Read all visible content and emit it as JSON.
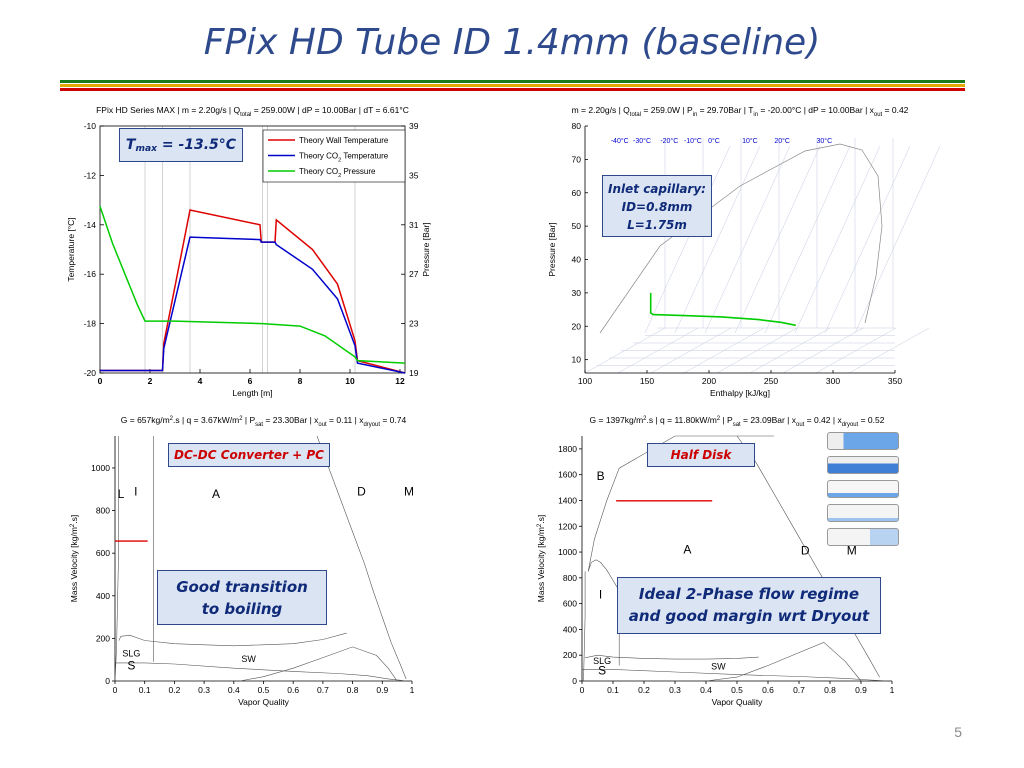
{
  "slide": {
    "title": "FPix HD Tube ID 1.4mm (baseline)",
    "page_number": "5",
    "rule_colors": [
      "#1a7a1a",
      "#e5a800",
      "#cc0000"
    ]
  },
  "chart_data": [
    {
      "id": "temperature_profile",
      "type": "line",
      "title": "FPix HD Series MAX | m = 2.20g/s | Q_total = 259.00W | dP = 10.00Bar | dT = 6.61°C",
      "title_parts": {
        "a": "FPix HD Series MAX | m = 2.20g/s | Q",
        "sub": "total",
        "b": " = 259.00W | dP = 10.00Bar | dT = 6.61°C"
      },
      "xlabel": "Length [m]",
      "ylabel": "Temperature [°C]",
      "y2label": "Pressure [Bar]",
      "xlim": [
        0,
        12.2
      ],
      "ylim": [
        -20,
        -10
      ],
      "y2lim": [
        19,
        39
      ],
      "xticks": [
        0,
        2,
        4,
        6,
        8,
        10,
        12
      ],
      "yticks": [
        -20,
        -18,
        -16,
        -14,
        -12,
        -10
      ],
      "y2ticks": [
        19,
        23,
        27,
        31,
        35,
        39
      ],
      "vlines": [
        1.8,
        2.5,
        3.6,
        6.5,
        6.7,
        10.2
      ],
      "legend": {
        "position": "top-right",
        "entries": [
          {
            "label": "Theory Wall Temperature",
            "color": "#dd0000"
          },
          {
            "label": "Theory CO2 Temperature",
            "label_a": "Theory CO",
            "label_sub": "2",
            "label_b": " Temperature",
            "color": "#0000cc"
          },
          {
            "label": "Theory CO2 Pressure",
            "label_a": "Theory CO",
            "label_sub": "2",
            "label_b": " Pressure",
            "color": "#00cc00"
          }
        ]
      },
      "series": [
        {
          "name": "Theory Wall Temperature",
          "axis": "left",
          "color": "#dd0000",
          "x": [
            0,
            2.5,
            2.55,
            3.6,
            6.4,
            6.45,
            7.0,
            7.05,
            8.5,
            9.5,
            10.2,
            10.3,
            12.2
          ],
          "y": [
            -19.9,
            -19.9,
            -18.8,
            -13.4,
            -14.0,
            -14.7,
            -14.7,
            -13.8,
            -15.0,
            -16.4,
            -18.7,
            -19.5,
            -20.0
          ]
        },
        {
          "name": "Theory CO2 Temperature",
          "axis": "left",
          "color": "#0000cc",
          "x": [
            0,
            2.5,
            2.55,
            3.6,
            5.0,
            6.4,
            6.45,
            7.0,
            7.05,
            8.5,
            9.5,
            10.2,
            10.3,
            12.2
          ],
          "y": [
            -19.9,
            -19.9,
            -19.0,
            -14.5,
            -14.55,
            -14.6,
            -14.7,
            -14.7,
            -14.8,
            -15.8,
            -17.0,
            -18.9,
            -19.6,
            -20.0
          ]
        },
        {
          "name": "Theory CO2 Pressure",
          "axis": "right",
          "color": "#00cc00",
          "x": [
            0,
            0.5,
            1.5,
            1.8,
            3.0,
            6.5,
            8.0,
            9.0,
            10.2,
            10.3,
            12.2
          ],
          "y": [
            32.5,
            29.5,
            24.5,
            23.2,
            23.2,
            23.0,
            22.8,
            22.0,
            20.3,
            20.0,
            19.8
          ]
        }
      ]
    },
    {
      "id": "ph_diagram",
      "type": "line",
      "title": "m = 2.20g/s | Q_total = 259.0W | P_in = 29.70Bar | T_in = -20.00°C | dP = 10.00Bar | x_out = 0.42",
      "title_parts": {
        "a": "m = 2.20g/s | Q",
        "s1": "total",
        "b": " = 259.0W | P",
        "s2": "in",
        "c": " = 29.70Bar | T",
        "s3": "in",
        "d": " = -20.00°C | dP = 10.00Bar | x",
        "s4": "out",
        "e": " = 0.42"
      },
      "xlabel": "Enthalpy [kJ/kg]",
      "ylabel": "Pressure [Bar]",
      "xlim": [
        100,
        350
      ],
      "ylim": [
        6,
        80
      ],
      "xticks": [
        100,
        150,
        200,
        250,
        300,
        350
      ],
      "yticks": [
        10,
        20,
        30,
        40,
        50,
        60,
        70,
        80
      ],
      "isotherm_labels": [
        "-40°C",
        "-30°C",
        "-20°C",
        "-10°C",
        "0°C",
        "10°C",
        "20°C",
        "30°C"
      ],
      "isotherm_label_h": [
        128,
        146,
        168,
        187,
        204,
        233,
        259,
        293
      ],
      "series": [
        {
          "name": "CO2 path",
          "color": "#00cc00",
          "x": [
            153,
            153,
            153,
            155,
            180,
            210,
            240,
            258,
            270
          ],
          "y": [
            30,
            25,
            24,
            23.5,
            23.2,
            22.8,
            22.0,
            21.2,
            20.3
          ]
        }
      ]
    },
    {
      "id": "flow_map_dcdc",
      "type": "line",
      "title": "G = 657kg/m2.s | q = 3.67kW/m2 | P_sat = 23.30Bar | x_out = 0.11 | x_dryout = 0.74",
      "title_parts": {
        "a": "G = 657kg/m",
        "sup1": "2",
        "b": ".s | q = 3.67kW/m",
        "sup2": "2",
        "c": " | P",
        "s1": "sat",
        "d": " = 23.30Bar | x",
        "s2": "out",
        "e": " = 0.11 | x",
        "s3": "dryout",
        "f": " = 0.74"
      },
      "xlabel": "Vapor Quality",
      "ylabel": "Mass Velocity [kg/m2.s]",
      "ylabel_parts": {
        "a": "Mass Velocity [kg/m",
        "sup": "2",
        "b": ".s]"
      },
      "xlim": [
        0,
        1
      ],
      "ylim": [
        0,
        1150
      ],
      "xticks": [
        0,
        0.1,
        0.2,
        0.3,
        0.4,
        0.5,
        0.6,
        0.7,
        0.8,
        0.9,
        1
      ],
      "xtick_labels": [
        "0",
        "0.1",
        "0.2",
        "0.3",
        "0.4",
        "0.5",
        "0.6",
        "0.7",
        "0.8",
        "0.9",
        "1"
      ],
      "yticks": [
        0,
        200,
        400,
        600,
        800,
        1000
      ],
      "regions": [
        {
          "label": "L",
          "x": 0.02,
          "y": 860
        },
        {
          "label": "I",
          "x": 0.07,
          "y": 870
        },
        {
          "label": "A",
          "x": 0.34,
          "y": 860
        },
        {
          "label": "D",
          "x": 0.83,
          "y": 870
        },
        {
          "label": "M",
          "x": 0.99,
          "y": 870
        },
        {
          "label": "SLG",
          "x": 0.055,
          "y": 115
        },
        {
          "label": "S",
          "x": 0.055,
          "y": 55
        },
        {
          "label": "SW",
          "x": 0.45,
          "y": 90
        }
      ],
      "boundaries": [
        {
          "x": [
            0,
            0.005,
            0.012,
            0.012
          ],
          "y": [
            0,
            150,
            600,
            1150
          ]
        },
        {
          "x": [
            0.13,
            0.13,
            0.13
          ],
          "y": [
            90,
            600,
            1150
          ]
        },
        {
          "x": [
            0.013,
            0.02,
            0.05,
            0.1,
            0.2,
            0.3,
            0.4,
            0.5,
            0.6,
            0.7,
            0.78
          ],
          "y": [
            190,
            210,
            215,
            190,
            175,
            170,
            165,
            170,
            175,
            195,
            225
          ]
        },
        {
          "x": [
            0,
            0.1,
            0.2,
            0.4,
            0.6,
            0.75,
            0.85,
            0.92,
            0.97
          ],
          "y": [
            85,
            85,
            80,
            60,
            45,
            35,
            25,
            10,
            2
          ]
        },
        {
          "x": [
            0.68,
            0.72,
            0.76,
            0.8,
            0.84,
            0.87,
            0.9,
            0.93,
            0.96,
            0.98
          ],
          "y": [
            1150,
            1000,
            850,
            700,
            550,
            420,
            300,
            180,
            80,
            10
          ]
        },
        {
          "x": [
            0.42,
            0.5,
            0.6,
            0.7,
            0.8,
            0.88,
            0.92,
            0.95
          ],
          "y": [
            0,
            20,
            60,
            110,
            160,
            120,
            60,
            0
          ]
        }
      ],
      "operating_point": {
        "x_range": [
          0,
          0.11
        ],
        "G": 657
      }
    },
    {
      "id": "flow_map_halfdisk",
      "type": "line",
      "title": "G = 1397kg/m2.s | q = 11.80kW/m2 | P_sat = 23.09Bar | x_out = 0.42 | x_dryout = 0.52",
      "title_parts": {
        "a": "G = 1397kg/m",
        "sup1": "2",
        "b": ".s | q = 11.80kW/m",
        "sup2": "2",
        "c": " | P",
        "s1": "sat",
        "d": " = 23.09Bar | x",
        "s2": "out",
        "e": " = 0.42 | x",
        "s3": "dryout",
        "f": " = 0.52"
      },
      "xlabel": "Vapor Quality",
      "ylabel": "Mass Velocity [kg/m2.s]",
      "ylabel_parts": {
        "a": "Mass Velocity [kg/m",
        "sup": "2",
        "b": ".s]"
      },
      "xlim": [
        0,
        1
      ],
      "ylim": [
        0,
        1900
      ],
      "xticks": [
        0,
        0.1,
        0.2,
        0.3,
        0.4,
        0.5,
        0.6,
        0.7,
        0.8,
        0.9,
        1
      ],
      "xtick_labels": [
        "0",
        "0.1",
        "0.2",
        "0.3",
        "0.4",
        "0.5",
        "0.6",
        "0.7",
        "0.8",
        "0.9",
        "1"
      ],
      "yticks": [
        0,
        200,
        400,
        600,
        800,
        1000,
        1200,
        1400,
        1600,
        1800
      ],
      "regions": [
        {
          "label": "B",
          "x": 0.06,
          "y": 1560
        },
        {
          "label": "A",
          "x": 0.34,
          "y": 990
        },
        {
          "label": "D",
          "x": 0.72,
          "y": 980
        },
        {
          "label": "M",
          "x": 0.87,
          "y": 980
        },
        {
          "label": "I",
          "x": 0.06,
          "y": 640
        },
        {
          "label": "SLG",
          "x": 0.065,
          "y": 130
        },
        {
          "label": "S",
          "x": 0.065,
          "y": 50
        },
        {
          "label": "SW",
          "x": 0.44,
          "y": 90
        }
      ],
      "boundaries": [
        {
          "x": [
            0.02,
            0.03,
            0.045,
            0.06,
            0.08,
            0.1,
            0.12
          ],
          "y": [
            850,
            920,
            940,
            920,
            860,
            780,
            700
          ]
        },
        {
          "x": [
            0.02,
            0.04,
            0.08,
            0.12,
            0.3,
            0.5,
            0.62
          ],
          "y": [
            850,
            1100,
            1400,
            1650,
            1900,
            1900,
            1900
          ]
        },
        {
          "x": [
            0.12,
            0.12,
            0.12
          ],
          "y": [
            120,
            600,
            700
          ]
        },
        {
          "x": [
            0.005,
            0.01,
            0.01
          ],
          "y": [
            0,
            500,
            850
          ]
        },
        {
          "x": [
            0.01,
            0.05,
            0.1,
            0.2,
            0.3,
            0.4,
            0.5,
            0.57
          ],
          "y": [
            180,
            200,
            185,
            175,
            170,
            170,
            175,
            185
          ]
        },
        {
          "x": [
            0,
            0.1,
            0.3,
            0.5,
            0.7,
            0.85,
            0.93,
            0.97
          ],
          "y": [
            90,
            90,
            70,
            50,
            35,
            20,
            8,
            2
          ]
        },
        {
          "x": [
            0.5,
            0.56,
            0.62,
            0.68,
            0.74,
            0.8,
            0.86,
            0.92,
            0.96
          ],
          "y": [
            1900,
            1700,
            1450,
            1200,
            950,
            700,
            450,
            200,
            30
          ]
        },
        {
          "x": [
            0.4,
            0.5,
            0.6,
            0.7,
            0.78,
            0.85,
            0.9
          ],
          "y": [
            0,
            30,
            120,
            220,
            300,
            150,
            0
          ]
        }
      ],
      "operating_point": {
        "x_range": [
          0.11,
          0.42
        ],
        "G": 1397
      }
    }
  ],
  "annotations": {
    "tmax": {
      "label_a": "T",
      "label_sub": "max",
      "label_b": " = -13.5°C"
    },
    "inlet": {
      "line1": "Inlet capillary:",
      "line2": "ID=0.8mm",
      "line3": "L=1.75m"
    },
    "dcdc": {
      "label": "DC-DC Converter + PC"
    },
    "halfdisk": {
      "label": "Half Disk"
    },
    "good_transition": {
      "line1": "Good transition",
      "line2": "to boiling"
    },
    "ideal": {
      "line1": "Ideal 2-Phase flow regime",
      "line2": "and good margin wrt Dryout"
    }
  },
  "flow_pattern_images": {
    "count": 5,
    "icon_name": "flow-pattern-thumbnail"
  }
}
